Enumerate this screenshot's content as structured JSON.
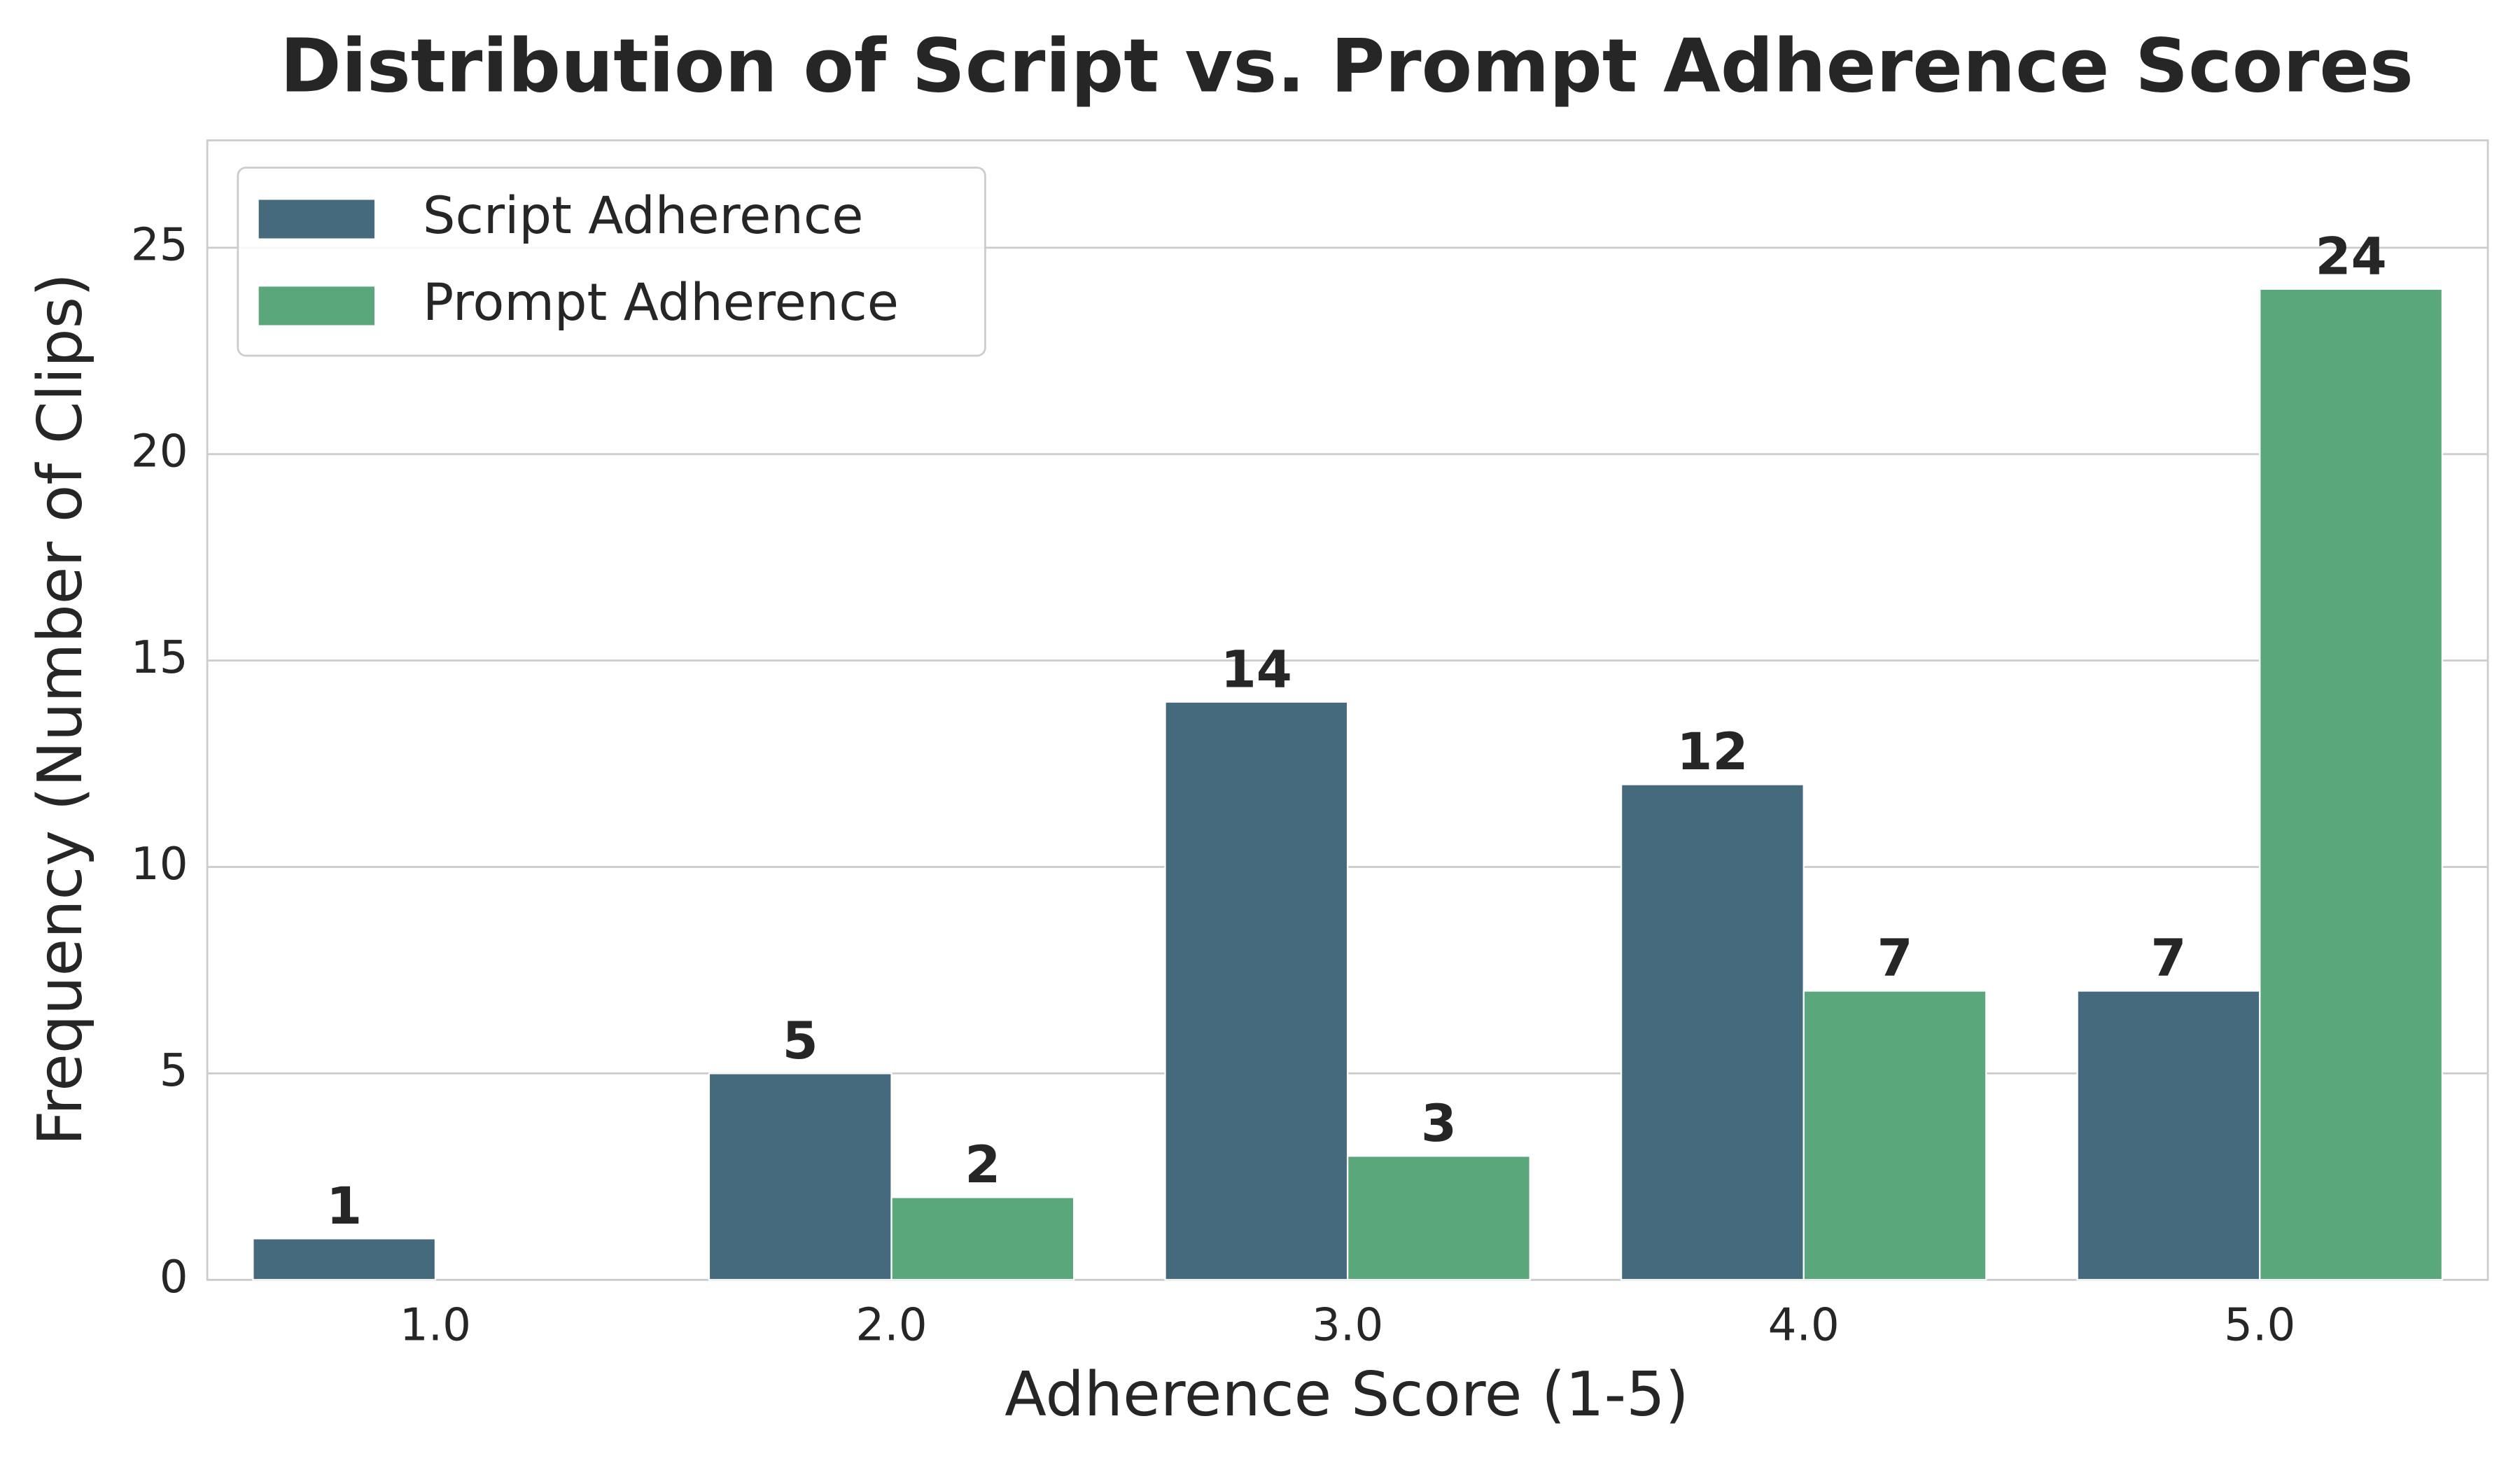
{
  "chart_data": {
    "type": "bar",
    "title": "Distribution of Script vs. Prompt Adherence Scores",
    "x_label": "Adherence Score (1-5)",
    "y_label": "Frequency (Number of Clips)",
    "categories": [
      "1.0",
      "2.0",
      "3.0",
      "4.0",
      "5.0"
    ],
    "series": [
      {
        "name": "Script Adherence",
        "color": "#466a7d",
        "values": [
          1,
          5,
          14,
          12,
          7
        ]
      },
      {
        "name": "Prompt Adherence",
        "color": "#5aa77b",
        "values": [
          null,
          2,
          3,
          7,
          24
        ]
      }
    ],
    "ylim": [
      0,
      27.6
    ],
    "yticks": [
      0,
      5,
      10,
      15,
      20,
      25
    ],
    "grid": true,
    "legend": "upper left"
  }
}
